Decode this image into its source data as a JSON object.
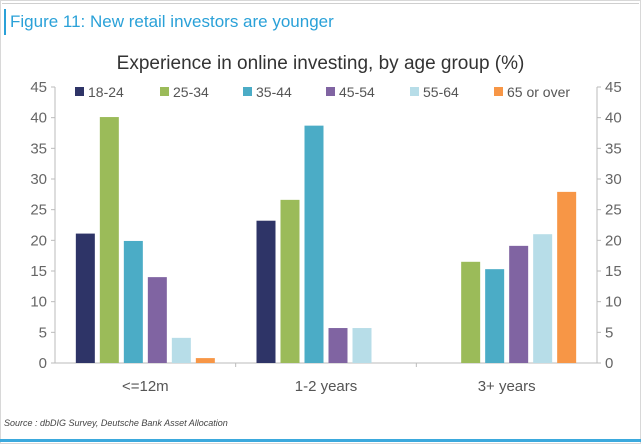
{
  "figure_title": "Figure 11: New retail investors are younger",
  "source": "Source : dbDIG Survey, Deutsche Bank Asset Allocation",
  "chart_data": {
    "type": "bar",
    "title": "Experience in online investing, by age group (%)",
    "xlabel": "",
    "ylabel": "",
    "ylim": [
      0,
      45
    ],
    "yticks": [
      0,
      5,
      10,
      15,
      20,
      25,
      30,
      35,
      40,
      45
    ],
    "secondary_yaxis": true,
    "legend_position": "top",
    "grid": false,
    "categories": [
      "<=12m",
      "1-2 years",
      "3+ years"
    ],
    "series": [
      {
        "name": "18-24",
        "color": "#2e3467",
        "values": [
          21.1,
          23.2,
          0
        ]
      },
      {
        "name": "25-34",
        "color": "#9bbb59",
        "values": [
          40.1,
          26.6,
          16.5
        ]
      },
      {
        "name": "35-44",
        "color": "#4bacc6",
        "values": [
          19.9,
          38.7,
          15.3
        ]
      },
      {
        "name": "45-54",
        "color": "#8064a2",
        "values": [
          14.0,
          5.7,
          19.1
        ]
      },
      {
        "name": "55-64",
        "color": "#b7dde8",
        "values": [
          4.1,
          5.7,
          21.0
        ]
      },
      {
        "name": "65 or over",
        "color": "#f79646",
        "values": [
          0.8,
          0,
          27.9
        ]
      }
    ]
  }
}
